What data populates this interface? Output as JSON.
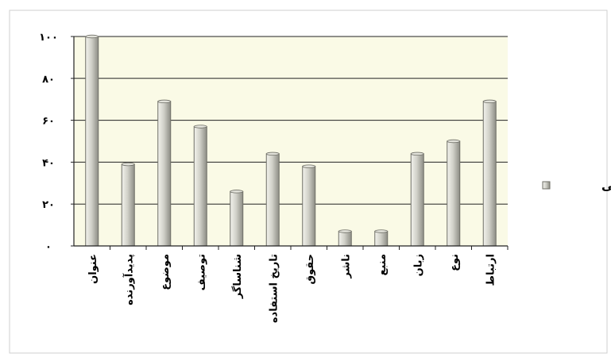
{
  "chart_data": {
    "type": "bar",
    "title": "",
    "xlabel": "",
    "ylabel": "",
    "ylim": [
      0,
      100
    ],
    "yticks": [
      0,
      20,
      40,
      60,
      80,
      100
    ],
    "ytick_labels": [
      "۰",
      "۲۰",
      "۴۰",
      "۶۰",
      "۸۰",
      "۱۰۰"
    ],
    "categories": [
      "عنوان",
      "پدیدآورنده",
      "موضوع",
      "توصیف",
      "شناساگر",
      "تاریخ استفاده",
      "حقوق",
      "ناشر",
      "منبع",
      "زبان",
      "نوع",
      "ارتباط"
    ],
    "series": [
      {
        "name": "فراوانی",
        "values": [
          100,
          39,
          69,
          57,
          26,
          44,
          38,
          7,
          7,
          44,
          50,
          69
        ]
      }
    ],
    "grid": true,
    "legend": "right",
    "colors": {
      "bar_fill": "#c9c9c0",
      "bar_stroke": "#6e6e66",
      "plot_bg": "#fafae6",
      "grid": "#222222",
      "frame": "#cfcfcf"
    }
  }
}
